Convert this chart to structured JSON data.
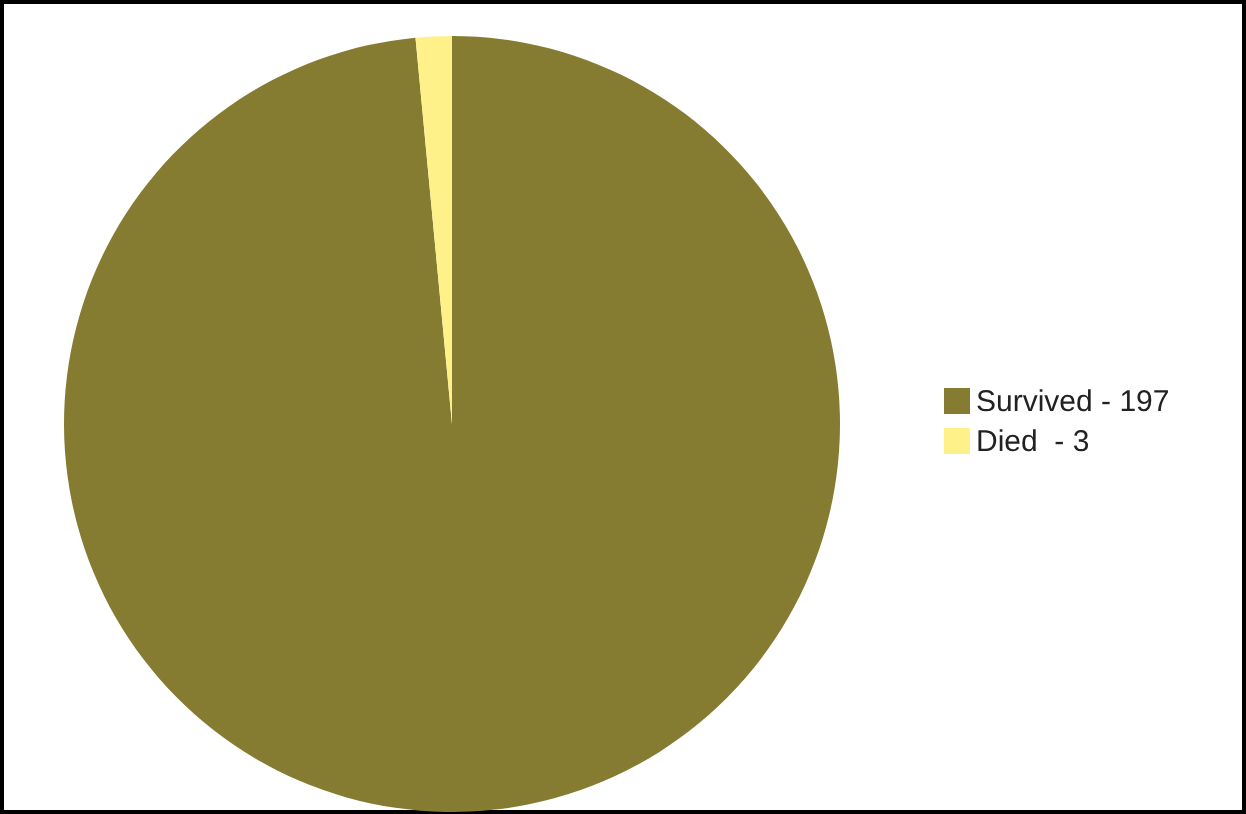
{
  "chart_data": {
    "type": "pie",
    "categories": [
      "Survived - 197",
      "Died  - 3"
    ],
    "values": [
      98.5,
      1.5
    ],
    "colors": [
      "#857c32",
      "#fff18a"
    ],
    "legend": "right"
  }
}
